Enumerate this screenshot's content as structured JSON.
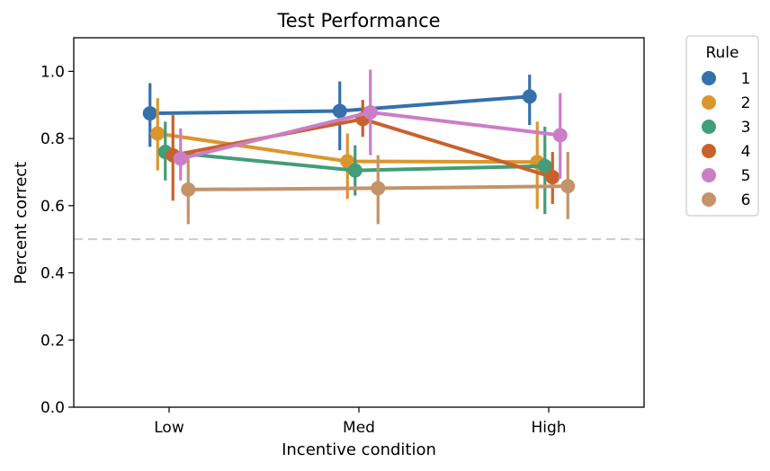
{
  "chart_data": {
    "type": "line",
    "title": "Test Performance",
    "xlabel": "Incentive condition",
    "ylabel": "Percent correct",
    "categories": [
      "Low",
      "Med",
      "High"
    ],
    "ylim": [
      0.0,
      1.1
    ],
    "yticks": [
      "0.0",
      "0.2",
      "0.4",
      "0.6",
      "0.8",
      "1.0"
    ],
    "reference_line": 0.5,
    "legend": {
      "title": "Rule",
      "placement": "outside-right"
    },
    "series": [
      {
        "name": "1",
        "color": "#3571aa",
        "values": [
          0.875,
          0.882,
          0.925
        ],
        "err_low": [
          0.775,
          0.765,
          0.84
        ],
        "err_high": [
          0.965,
          0.97,
          0.99
        ]
      },
      {
        "name": "2",
        "color": "#dc962e",
        "values": [
          0.815,
          0.732,
          0.73
        ],
        "err_low": [
          0.705,
          0.62,
          0.59
        ],
        "err_high": [
          0.92,
          0.815,
          0.85
        ]
      },
      {
        "name": "3",
        "color": "#419e78",
        "values": [
          0.76,
          0.705,
          0.718
        ],
        "err_low": [
          0.675,
          0.63,
          0.575
        ],
        "err_high": [
          0.85,
          0.78,
          0.835
        ]
      },
      {
        "name": "4",
        "color": "#c8622c",
        "values": [
          0.75,
          0.858,
          0.685
        ],
        "err_low": [
          0.615,
          0.805,
          0.605
        ],
        "err_high": [
          0.87,
          0.915,
          0.76
        ]
      },
      {
        "name": "5",
        "color": "#cb7ec6",
        "values": [
          0.74,
          0.878,
          0.81
        ],
        "err_low": [
          0.675,
          0.75,
          0.68
        ],
        "err_high": [
          0.83,
          1.005,
          0.935
        ]
      },
      {
        "name": "6",
        "color": "#c4936a",
        "values": [
          0.648,
          0.652,
          0.658
        ],
        "err_low": [
          0.545,
          0.545,
          0.56
        ],
        "err_high": [
          0.74,
          0.75,
          0.76
        ]
      }
    ]
  }
}
